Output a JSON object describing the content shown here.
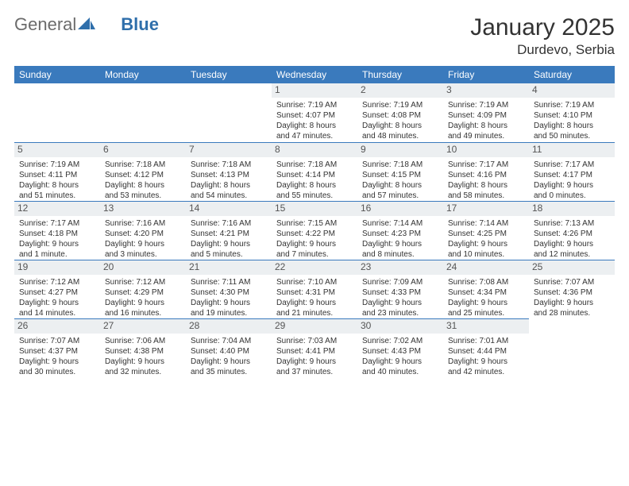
{
  "brand": {
    "part1": "General",
    "part2": "Blue"
  },
  "title": "January 2025",
  "location": "Durdevo, Serbia",
  "headers": [
    "Sunday",
    "Monday",
    "Tuesday",
    "Wednesday",
    "Thursday",
    "Friday",
    "Saturday"
  ],
  "colors": {
    "header_bg": "#3a7abd",
    "daynum_bg": "#eceff1",
    "rule": "#3a7abd"
  },
  "weeks": [
    [
      {
        "n": "",
        "l1": "",
        "l2": "",
        "l3": "",
        "l4": "",
        "empty": true
      },
      {
        "n": "",
        "l1": "",
        "l2": "",
        "l3": "",
        "l4": "",
        "empty": true
      },
      {
        "n": "",
        "l1": "",
        "l2": "",
        "l3": "",
        "l4": "",
        "empty": true
      },
      {
        "n": "1",
        "l1": "Sunrise: 7:19 AM",
        "l2": "Sunset: 4:07 PM",
        "l3": "Daylight: 8 hours",
        "l4": "and 47 minutes."
      },
      {
        "n": "2",
        "l1": "Sunrise: 7:19 AM",
        "l2": "Sunset: 4:08 PM",
        "l3": "Daylight: 8 hours",
        "l4": "and 48 minutes."
      },
      {
        "n": "3",
        "l1": "Sunrise: 7:19 AM",
        "l2": "Sunset: 4:09 PM",
        "l3": "Daylight: 8 hours",
        "l4": "and 49 minutes."
      },
      {
        "n": "4",
        "l1": "Sunrise: 7:19 AM",
        "l2": "Sunset: 4:10 PM",
        "l3": "Daylight: 8 hours",
        "l4": "and 50 minutes."
      }
    ],
    [
      {
        "n": "5",
        "l1": "Sunrise: 7:19 AM",
        "l2": "Sunset: 4:11 PM",
        "l3": "Daylight: 8 hours",
        "l4": "and 51 minutes."
      },
      {
        "n": "6",
        "l1": "Sunrise: 7:18 AM",
        "l2": "Sunset: 4:12 PM",
        "l3": "Daylight: 8 hours",
        "l4": "and 53 minutes."
      },
      {
        "n": "7",
        "l1": "Sunrise: 7:18 AM",
        "l2": "Sunset: 4:13 PM",
        "l3": "Daylight: 8 hours",
        "l4": "and 54 minutes."
      },
      {
        "n": "8",
        "l1": "Sunrise: 7:18 AM",
        "l2": "Sunset: 4:14 PM",
        "l3": "Daylight: 8 hours",
        "l4": "and 55 minutes."
      },
      {
        "n": "9",
        "l1": "Sunrise: 7:18 AM",
        "l2": "Sunset: 4:15 PM",
        "l3": "Daylight: 8 hours",
        "l4": "and 57 minutes."
      },
      {
        "n": "10",
        "l1": "Sunrise: 7:17 AM",
        "l2": "Sunset: 4:16 PM",
        "l3": "Daylight: 8 hours",
        "l4": "and 58 minutes."
      },
      {
        "n": "11",
        "l1": "Sunrise: 7:17 AM",
        "l2": "Sunset: 4:17 PM",
        "l3": "Daylight: 9 hours",
        "l4": "and 0 minutes."
      }
    ],
    [
      {
        "n": "12",
        "l1": "Sunrise: 7:17 AM",
        "l2": "Sunset: 4:18 PM",
        "l3": "Daylight: 9 hours",
        "l4": "and 1 minute."
      },
      {
        "n": "13",
        "l1": "Sunrise: 7:16 AM",
        "l2": "Sunset: 4:20 PM",
        "l3": "Daylight: 9 hours",
        "l4": "and 3 minutes."
      },
      {
        "n": "14",
        "l1": "Sunrise: 7:16 AM",
        "l2": "Sunset: 4:21 PM",
        "l3": "Daylight: 9 hours",
        "l4": "and 5 minutes."
      },
      {
        "n": "15",
        "l1": "Sunrise: 7:15 AM",
        "l2": "Sunset: 4:22 PM",
        "l3": "Daylight: 9 hours",
        "l4": "and 7 minutes."
      },
      {
        "n": "16",
        "l1": "Sunrise: 7:14 AM",
        "l2": "Sunset: 4:23 PM",
        "l3": "Daylight: 9 hours",
        "l4": "and 8 minutes."
      },
      {
        "n": "17",
        "l1": "Sunrise: 7:14 AM",
        "l2": "Sunset: 4:25 PM",
        "l3": "Daylight: 9 hours",
        "l4": "and 10 minutes."
      },
      {
        "n": "18",
        "l1": "Sunrise: 7:13 AM",
        "l2": "Sunset: 4:26 PM",
        "l3": "Daylight: 9 hours",
        "l4": "and 12 minutes."
      }
    ],
    [
      {
        "n": "19",
        "l1": "Sunrise: 7:12 AM",
        "l2": "Sunset: 4:27 PM",
        "l3": "Daylight: 9 hours",
        "l4": "and 14 minutes."
      },
      {
        "n": "20",
        "l1": "Sunrise: 7:12 AM",
        "l2": "Sunset: 4:29 PM",
        "l3": "Daylight: 9 hours",
        "l4": "and 16 minutes."
      },
      {
        "n": "21",
        "l1": "Sunrise: 7:11 AM",
        "l2": "Sunset: 4:30 PM",
        "l3": "Daylight: 9 hours",
        "l4": "and 19 minutes."
      },
      {
        "n": "22",
        "l1": "Sunrise: 7:10 AM",
        "l2": "Sunset: 4:31 PM",
        "l3": "Daylight: 9 hours",
        "l4": "and 21 minutes."
      },
      {
        "n": "23",
        "l1": "Sunrise: 7:09 AM",
        "l2": "Sunset: 4:33 PM",
        "l3": "Daylight: 9 hours",
        "l4": "and 23 minutes."
      },
      {
        "n": "24",
        "l1": "Sunrise: 7:08 AM",
        "l2": "Sunset: 4:34 PM",
        "l3": "Daylight: 9 hours",
        "l4": "and 25 minutes."
      },
      {
        "n": "25",
        "l1": "Sunrise: 7:07 AM",
        "l2": "Sunset: 4:36 PM",
        "l3": "Daylight: 9 hours",
        "l4": "and 28 minutes."
      }
    ],
    [
      {
        "n": "26",
        "l1": "Sunrise: 7:07 AM",
        "l2": "Sunset: 4:37 PM",
        "l3": "Daylight: 9 hours",
        "l4": "and 30 minutes."
      },
      {
        "n": "27",
        "l1": "Sunrise: 7:06 AM",
        "l2": "Sunset: 4:38 PM",
        "l3": "Daylight: 9 hours",
        "l4": "and 32 minutes."
      },
      {
        "n": "28",
        "l1": "Sunrise: 7:04 AM",
        "l2": "Sunset: 4:40 PM",
        "l3": "Daylight: 9 hours",
        "l4": "and 35 minutes."
      },
      {
        "n": "29",
        "l1": "Sunrise: 7:03 AM",
        "l2": "Sunset: 4:41 PM",
        "l3": "Daylight: 9 hours",
        "l4": "and 37 minutes."
      },
      {
        "n": "30",
        "l1": "Sunrise: 7:02 AM",
        "l2": "Sunset: 4:43 PM",
        "l3": "Daylight: 9 hours",
        "l4": "and 40 minutes."
      },
      {
        "n": "31",
        "l1": "Sunrise: 7:01 AM",
        "l2": "Sunset: 4:44 PM",
        "l3": "Daylight: 9 hours",
        "l4": "and 42 minutes."
      },
      {
        "n": "",
        "l1": "",
        "l2": "",
        "l3": "",
        "l4": "",
        "empty": true
      }
    ]
  ]
}
